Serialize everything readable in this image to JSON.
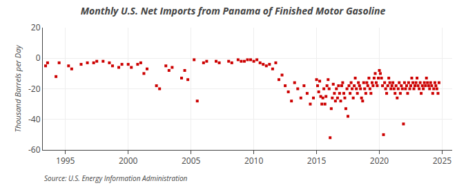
{
  "chart_data": {
    "type": "scatter",
    "title": "Monthly U.S. Net Imports from Panama of Finished Motor Gasoline",
    "ylabel": "Thousand Barrels per Day",
    "source": "Source: U.S. Energy Information Administration",
    "color": "#cc0000",
    "marker": "square",
    "grid": true,
    "xlim": [
      1993.2,
      2025.8
    ],
    "xticks": [
      1995,
      2000,
      2005,
      2010,
      2015,
      2020,
      2025
    ],
    "ylim": [
      -60,
      20
    ],
    "yticks": [
      -60,
      -40,
      -20,
      0,
      20
    ],
    "x": [
      1993.42,
      1993.58,
      1994.25,
      1994.5,
      1995.25,
      1995.5,
      1996.25,
      1996.75,
      1997.25,
      1997.5,
      1998.0,
      1998.5,
      1998.75,
      1999.25,
      1999.5,
      2000.0,
      2000.25,
      2000.75,
      2001.0,
      2001.25,
      2001.5,
      2002.25,
      2002.5,
      2003.0,
      2003.25,
      2003.5,
      2004.25,
      2004.5,
      2004.75,
      2005.25,
      2005.5,
      2006.0,
      2006.25,
      2007.0,
      2007.25,
      2008.0,
      2008.25,
      2008.75,
      2009.0,
      2009.25,
      2009.5,
      2009.75,
      2010.0,
      2010.25,
      2010.5,
      2010.75,
      2011.0,
      2011.25,
      2011.5,
      2011.75,
      2012.0,
      2012.25,
      2012.5,
      2012.75,
      2013.0,
      2013.25,
      2013.5,
      2013.75,
      2014.0,
      2014.25,
      2014.5,
      2014.75,
      2015.0,
      2015.08,
      2015.17,
      2015.25,
      2015.33,
      2015.42,
      2015.5,
      2015.58,
      2015.67,
      2015.75,
      2015.83,
      2015.92,
      2016.0,
      2016.08,
      2016.17,
      2016.25,
      2016.33,
      2016.42,
      2016.5,
      2016.58,
      2016.67,
      2016.75,
      2016.83,
      2016.92,
      2017.0,
      2017.08,
      2017.17,
      2017.25,
      2017.33,
      2017.42,
      2017.5,
      2017.58,
      2017.67,
      2017.75,
      2017.83,
      2017.92,
      2018.0,
      2018.08,
      2018.17,
      2018.25,
      2018.33,
      2018.42,
      2018.5,
      2018.58,
      2018.67,
      2018.75,
      2018.83,
      2018.92,
      2019.0,
      2019.08,
      2019.17,
      2019.25,
      2019.33,
      2019.42,
      2019.5,
      2019.58,
      2019.67,
      2019.75,
      2019.83,
      2019.92,
      2020.0,
      2020.08,
      2020.17,
      2020.25,
      2020.33,
      2020.42,
      2020.5,
      2020.58,
      2020.67,
      2020.75,
      2020.83,
      2020.92,
      2021.0,
      2021.08,
      2021.17,
      2021.25,
      2021.33,
      2021.42,
      2021.5,
      2021.58,
      2021.67,
      2021.75,
      2021.83,
      2021.92,
      2022.0,
      2022.08,
      2022.17,
      2022.25,
      2022.33,
      2022.42,
      2022.5,
      2022.58,
      2022.67,
      2022.75,
      2022.83,
      2022.92,
      2023.0,
      2023.08,
      2023.17,
      2023.25,
      2023.33,
      2023.42,
      2023.5,
      2023.58,
      2023.67,
      2023.75,
      2023.83,
      2023.92,
      2024.0,
      2024.08,
      2024.17,
      2024.25,
      2024.33,
      2024.42,
      2024.5,
      2024.58,
      2024.67,
      2024.75
    ],
    "values": [
      -5,
      -3,
      -12,
      -3,
      -5,
      -7,
      -4,
      -3,
      -3,
      -2,
      -2,
      -3,
      -5,
      -6,
      -4,
      -4,
      -6,
      -4,
      -3,
      -10,
      -7,
      -18,
      -20,
      -5,
      -8,
      -6,
      -13,
      -8,
      -14,
      -1,
      -28,
      -3,
      -2,
      -2,
      -3,
      -2,
      -3,
      -1,
      -2,
      -2,
      -1,
      -1,
      -2,
      -1,
      -3,
      -4,
      -5,
      -4,
      -7,
      -3,
      -14,
      -11,
      -18,
      -22,
      -28,
      -16,
      -20,
      -26,
      -18,
      -23,
      -30,
      -26,
      -14,
      -18,
      -22,
      -15,
      -25,
      -30,
      -26,
      -20,
      -30,
      -25,
      -18,
      -14,
      -20,
      -52,
      -33,
      -26,
      -17,
      -23,
      -28,
      -20,
      -26,
      -18,
      -23,
      -28,
      -18,
      -16,
      -23,
      -26,
      -33,
      -20,
      -38,
      -18,
      -23,
      -16,
      -20,
      -26,
      -18,
      -13,
      -20,
      -23,
      -16,
      -18,
      -20,
      -26,
      -28,
      -16,
      -20,
      -23,
      -16,
      -18,
      -13,
      -20,
      -23,
      -16,
      -18,
      -13,
      -10,
      -16,
      -18,
      -13,
      -8,
      -10,
      -13,
      -18,
      -50,
      -16,
      -20,
      -23,
      -18,
      -13,
      -16,
      -20,
      -18,
      -16,
      -20,
      -23,
      -18,
      -26,
      -20,
      -16,
      -23,
      -18,
      -20,
      -43,
      -16,
      -20,
      -18,
      -23,
      -16,
      -20,
      -18,
      -13,
      -16,
      -20,
      -18,
      -16,
      -13,
      -18,
      -20,
      -16,
      -23,
      -18,
      -20,
      -16,
      -18,
      -13,
      -16,
      -18,
      -20,
      -16,
      -18,
      -23,
      -20,
      -16,
      -18,
      -20,
      -23,
      -16
    ]
  }
}
